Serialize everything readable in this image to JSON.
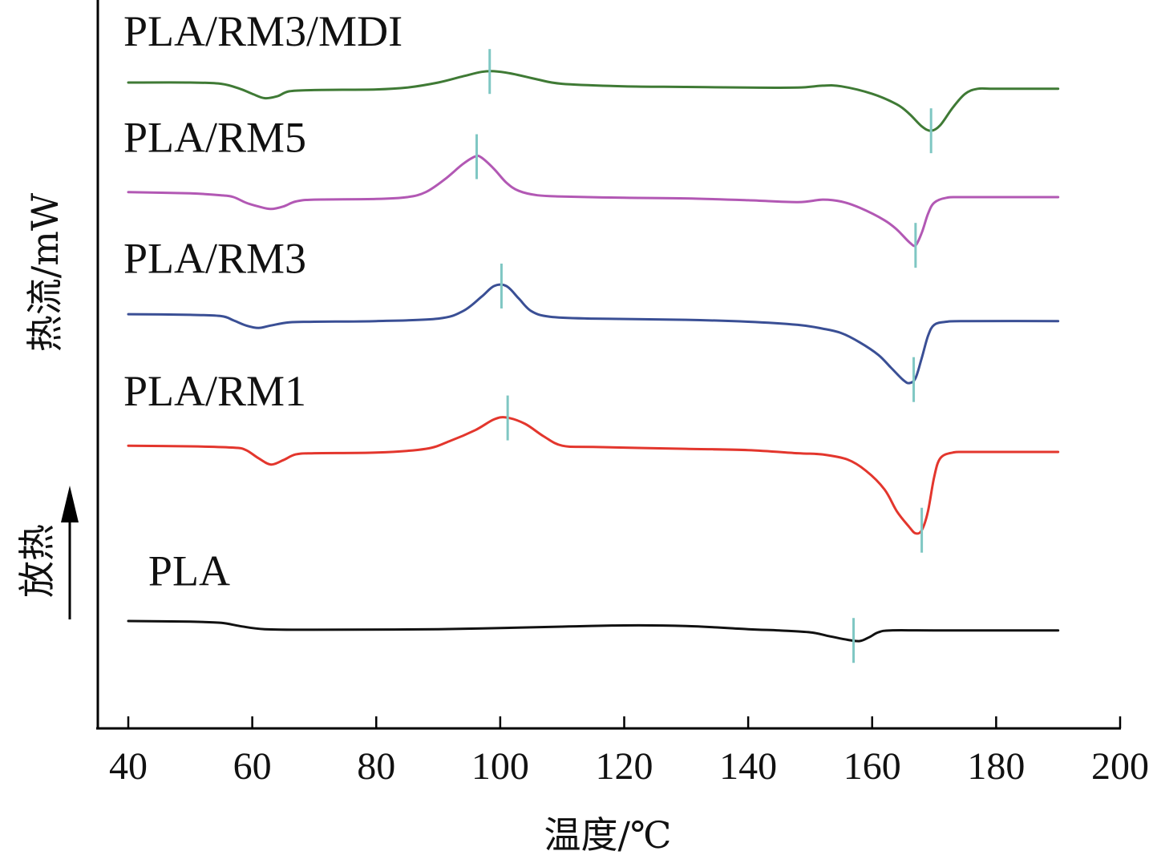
{
  "chart_data": {
    "type": "line",
    "xlabel": "温度/℃",
    "ylabel": "热流/mW",
    "exo_label": "放热",
    "xlim": [
      40,
      200
    ],
    "xticks": [
      40,
      60,
      80,
      100,
      120,
      140,
      160,
      180,
      200
    ],
    "tick_labels": [
      "40",
      "60",
      "80",
      "100",
      "120",
      "140",
      "160",
      "180",
      "200"
    ],
    "marker_color": "#7fc7c3",
    "series": [
      {
        "name": "PLA/RM3/MDI",
        "color": "#3f7a35",
        "label_x": 40,
        "label_offset": 9.2,
        "points": [
          [
            40,
            6.8
          ],
          [
            50,
            6.8
          ],
          [
            55,
            6.78
          ],
          [
            58,
            6.7
          ],
          [
            60,
            6.62
          ],
          [
            62,
            6.55
          ],
          [
            64,
            6.58
          ],
          [
            66,
            6.66
          ],
          [
            70,
            6.68
          ],
          [
            80,
            6.69
          ],
          [
            85,
            6.72
          ],
          [
            90,
            6.8
          ],
          [
            94,
            6.9
          ],
          [
            97,
            6.97
          ],
          [
            99,
            6.98
          ],
          [
            102,
            6.94
          ],
          [
            106,
            6.85
          ],
          [
            110,
            6.78
          ],
          [
            120,
            6.74
          ],
          [
            130,
            6.73
          ],
          [
            140,
            6.72
          ],
          [
            148,
            6.72
          ],
          [
            152,
            6.75
          ],
          [
            155,
            6.74
          ],
          [
            160,
            6.62
          ],
          [
            164,
            6.45
          ],
          [
            166,
            6.3
          ],
          [
            168,
            6.1
          ],
          [
            169.5,
            6.03
          ],
          [
            171,
            6.12
          ],
          [
            173,
            6.4
          ],
          [
            175,
            6.62
          ],
          [
            177,
            6.7
          ],
          [
            180,
            6.7
          ],
          [
            190,
            6.7
          ]
        ],
        "markers": [
          98.3,
          169.5
        ]
      },
      {
        "name": "PLA/RM5",
        "color": "#b258b4",
        "label_x": 40,
        "label_offset": 10.0,
        "points": [
          [
            40,
            5.05
          ],
          [
            50,
            5.03
          ],
          [
            55,
            5.0
          ],
          [
            57,
            4.97
          ],
          [
            59,
            4.88
          ],
          [
            61,
            4.82
          ],
          [
            63,
            4.78
          ],
          [
            65,
            4.82
          ],
          [
            67,
            4.9
          ],
          [
            70,
            4.93
          ],
          [
            80,
            4.94
          ],
          [
            85,
            4.97
          ],
          [
            88,
            5.05
          ],
          [
            91,
            5.25
          ],
          [
            94,
            5.5
          ],
          [
            96,
            5.62
          ],
          [
            97,
            5.6
          ],
          [
            99,
            5.42
          ],
          [
            101,
            5.2
          ],
          [
            103,
            5.07
          ],
          [
            106,
            5.0
          ],
          [
            110,
            4.98
          ],
          [
            120,
            4.96
          ],
          [
            130,
            4.95
          ],
          [
            140,
            4.92
          ],
          [
            148,
            4.89
          ],
          [
            152,
            4.93
          ],
          [
            155,
            4.9
          ],
          [
            158,
            4.8
          ],
          [
            162,
            4.6
          ],
          [
            164,
            4.45
          ],
          [
            166,
            4.25
          ],
          [
            167,
            4.2
          ],
          [
            168,
            4.4
          ],
          [
            169,
            4.7
          ],
          [
            170,
            4.88
          ],
          [
            172,
            4.96
          ],
          [
            175,
            4.97
          ],
          [
            190,
            4.97
          ]
        ],
        "markers": [
          96.2,
          167.0
        ]
      },
      {
        "name": "PLA/RM3",
        "color": "#3a4f95",
        "label_x": 40,
        "label_offset": 10.3,
        "points": [
          [
            40,
            3.1
          ],
          [
            50,
            3.09
          ],
          [
            55,
            3.07
          ],
          [
            57,
            3.0
          ],
          [
            59,
            2.92
          ],
          [
            61,
            2.88
          ],
          [
            63,
            2.92
          ],
          [
            66,
            2.97
          ],
          [
            70,
            2.98
          ],
          [
            80,
            2.99
          ],
          [
            90,
            3.03
          ],
          [
            94,
            3.15
          ],
          [
            97,
            3.38
          ],
          [
            99,
            3.55
          ],
          [
            101,
            3.55
          ],
          [
            103,
            3.35
          ],
          [
            105,
            3.15
          ],
          [
            108,
            3.06
          ],
          [
            115,
            3.03
          ],
          [
            130,
            3.01
          ],
          [
            140,
            2.98
          ],
          [
            148,
            2.93
          ],
          [
            152,
            2.87
          ],
          [
            155,
            2.8
          ],
          [
            158,
            2.65
          ],
          [
            161,
            2.45
          ],
          [
            163,
            2.25
          ],
          [
            165,
            2.05
          ],
          [
            166,
            2.0
          ],
          [
            167,
            2.08
          ],
          [
            168,
            2.4
          ],
          [
            169,
            2.75
          ],
          [
            170,
            2.93
          ],
          [
            172,
            2.98
          ],
          [
            175,
            2.99
          ],
          [
            190,
            2.99
          ]
        ],
        "markers": [
          100.2,
          166.7
        ]
      },
      {
        "name": "PLA/RM1",
        "color": "#e3362d",
        "label_x": 40,
        "label_offset": 10.0,
        "points": [
          [
            40,
            1.0
          ],
          [
            50,
            0.99
          ],
          [
            57,
            0.97
          ],
          [
            59,
            0.93
          ],
          [
            61,
            0.8
          ],
          [
            63,
            0.7
          ],
          [
            65,
            0.77
          ],
          [
            67,
            0.86
          ],
          [
            70,
            0.88
          ],
          [
            80,
            0.89
          ],
          [
            88,
            0.95
          ],
          [
            92,
            1.08
          ],
          [
            96,
            1.25
          ],
          [
            99,
            1.42
          ],
          [
            101,
            1.45
          ],
          [
            104,
            1.35
          ],
          [
            107,
            1.15
          ],
          [
            110,
            1.0
          ],
          [
            115,
            0.98
          ],
          [
            130,
            0.95
          ],
          [
            140,
            0.93
          ],
          [
            148,
            0.88
          ],
          [
            152,
            0.86
          ],
          [
            156,
            0.78
          ],
          [
            159,
            0.6
          ],
          [
            162,
            0.3
          ],
          [
            164,
            -0.05
          ],
          [
            166,
            -0.3
          ],
          [
            167,
            -0.4
          ],
          [
            168,
            -0.35
          ],
          [
            169,
            -0.05
          ],
          [
            170,
            0.5
          ],
          [
            171,
            0.8
          ],
          [
            173,
            0.89
          ],
          [
            176,
            0.9
          ],
          [
            190,
            0.9
          ]
        ],
        "markers": [
          101.2,
          168.0
        ]
      },
      {
        "name": "PLA",
        "color": "#111111",
        "label_x": 44,
        "label_offset": 9.0,
        "points": [
          [
            40,
            -1.8
          ],
          [
            50,
            -1.81
          ],
          [
            55,
            -1.83
          ],
          [
            58,
            -1.88
          ],
          [
            62,
            -1.93
          ],
          [
            70,
            -1.94
          ],
          [
            90,
            -1.93
          ],
          [
            110,
            -1.89
          ],
          [
            120,
            -1.87
          ],
          [
            130,
            -1.88
          ],
          [
            140,
            -1.93
          ],
          [
            145,
            -1.95
          ],
          [
            150,
            -1.98
          ],
          [
            153,
            -2.04
          ],
          [
            156,
            -2.1
          ],
          [
            158,
            -2.12
          ],
          [
            159.5,
            -2.06
          ],
          [
            161,
            -1.98
          ],
          [
            163,
            -1.95
          ],
          [
            170,
            -1.95
          ],
          [
            190,
            -1.95
          ]
        ],
        "markers": [
          157.0
        ]
      }
    ]
  }
}
